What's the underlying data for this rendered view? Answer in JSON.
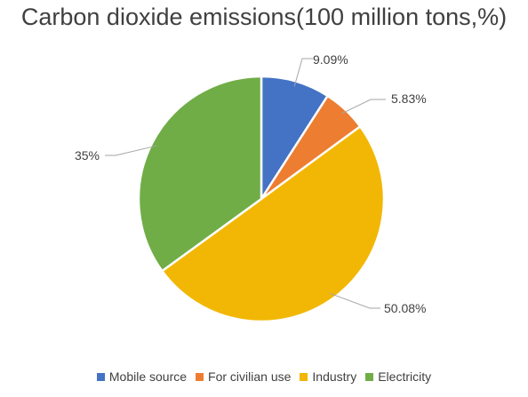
{
  "chart_data": {
    "type": "pie",
    "title": "Carbon dioxide emissions(100 million tons,%)",
    "categories": [
      "Mobile source",
      "For civilian use",
      "Industry",
      "Electricity"
    ],
    "values": [
      9.09,
      5.83,
      50.08,
      35
    ],
    "data_labels": [
      "9.09%",
      "5.83%",
      "50.08%",
      "35%"
    ],
    "colors": [
      "#4472C4",
      "#ED7D31",
      "#F2B705",
      "#70AD47"
    ],
    "legend_position": "bottom",
    "start": "12 o'clock, clockwise"
  }
}
